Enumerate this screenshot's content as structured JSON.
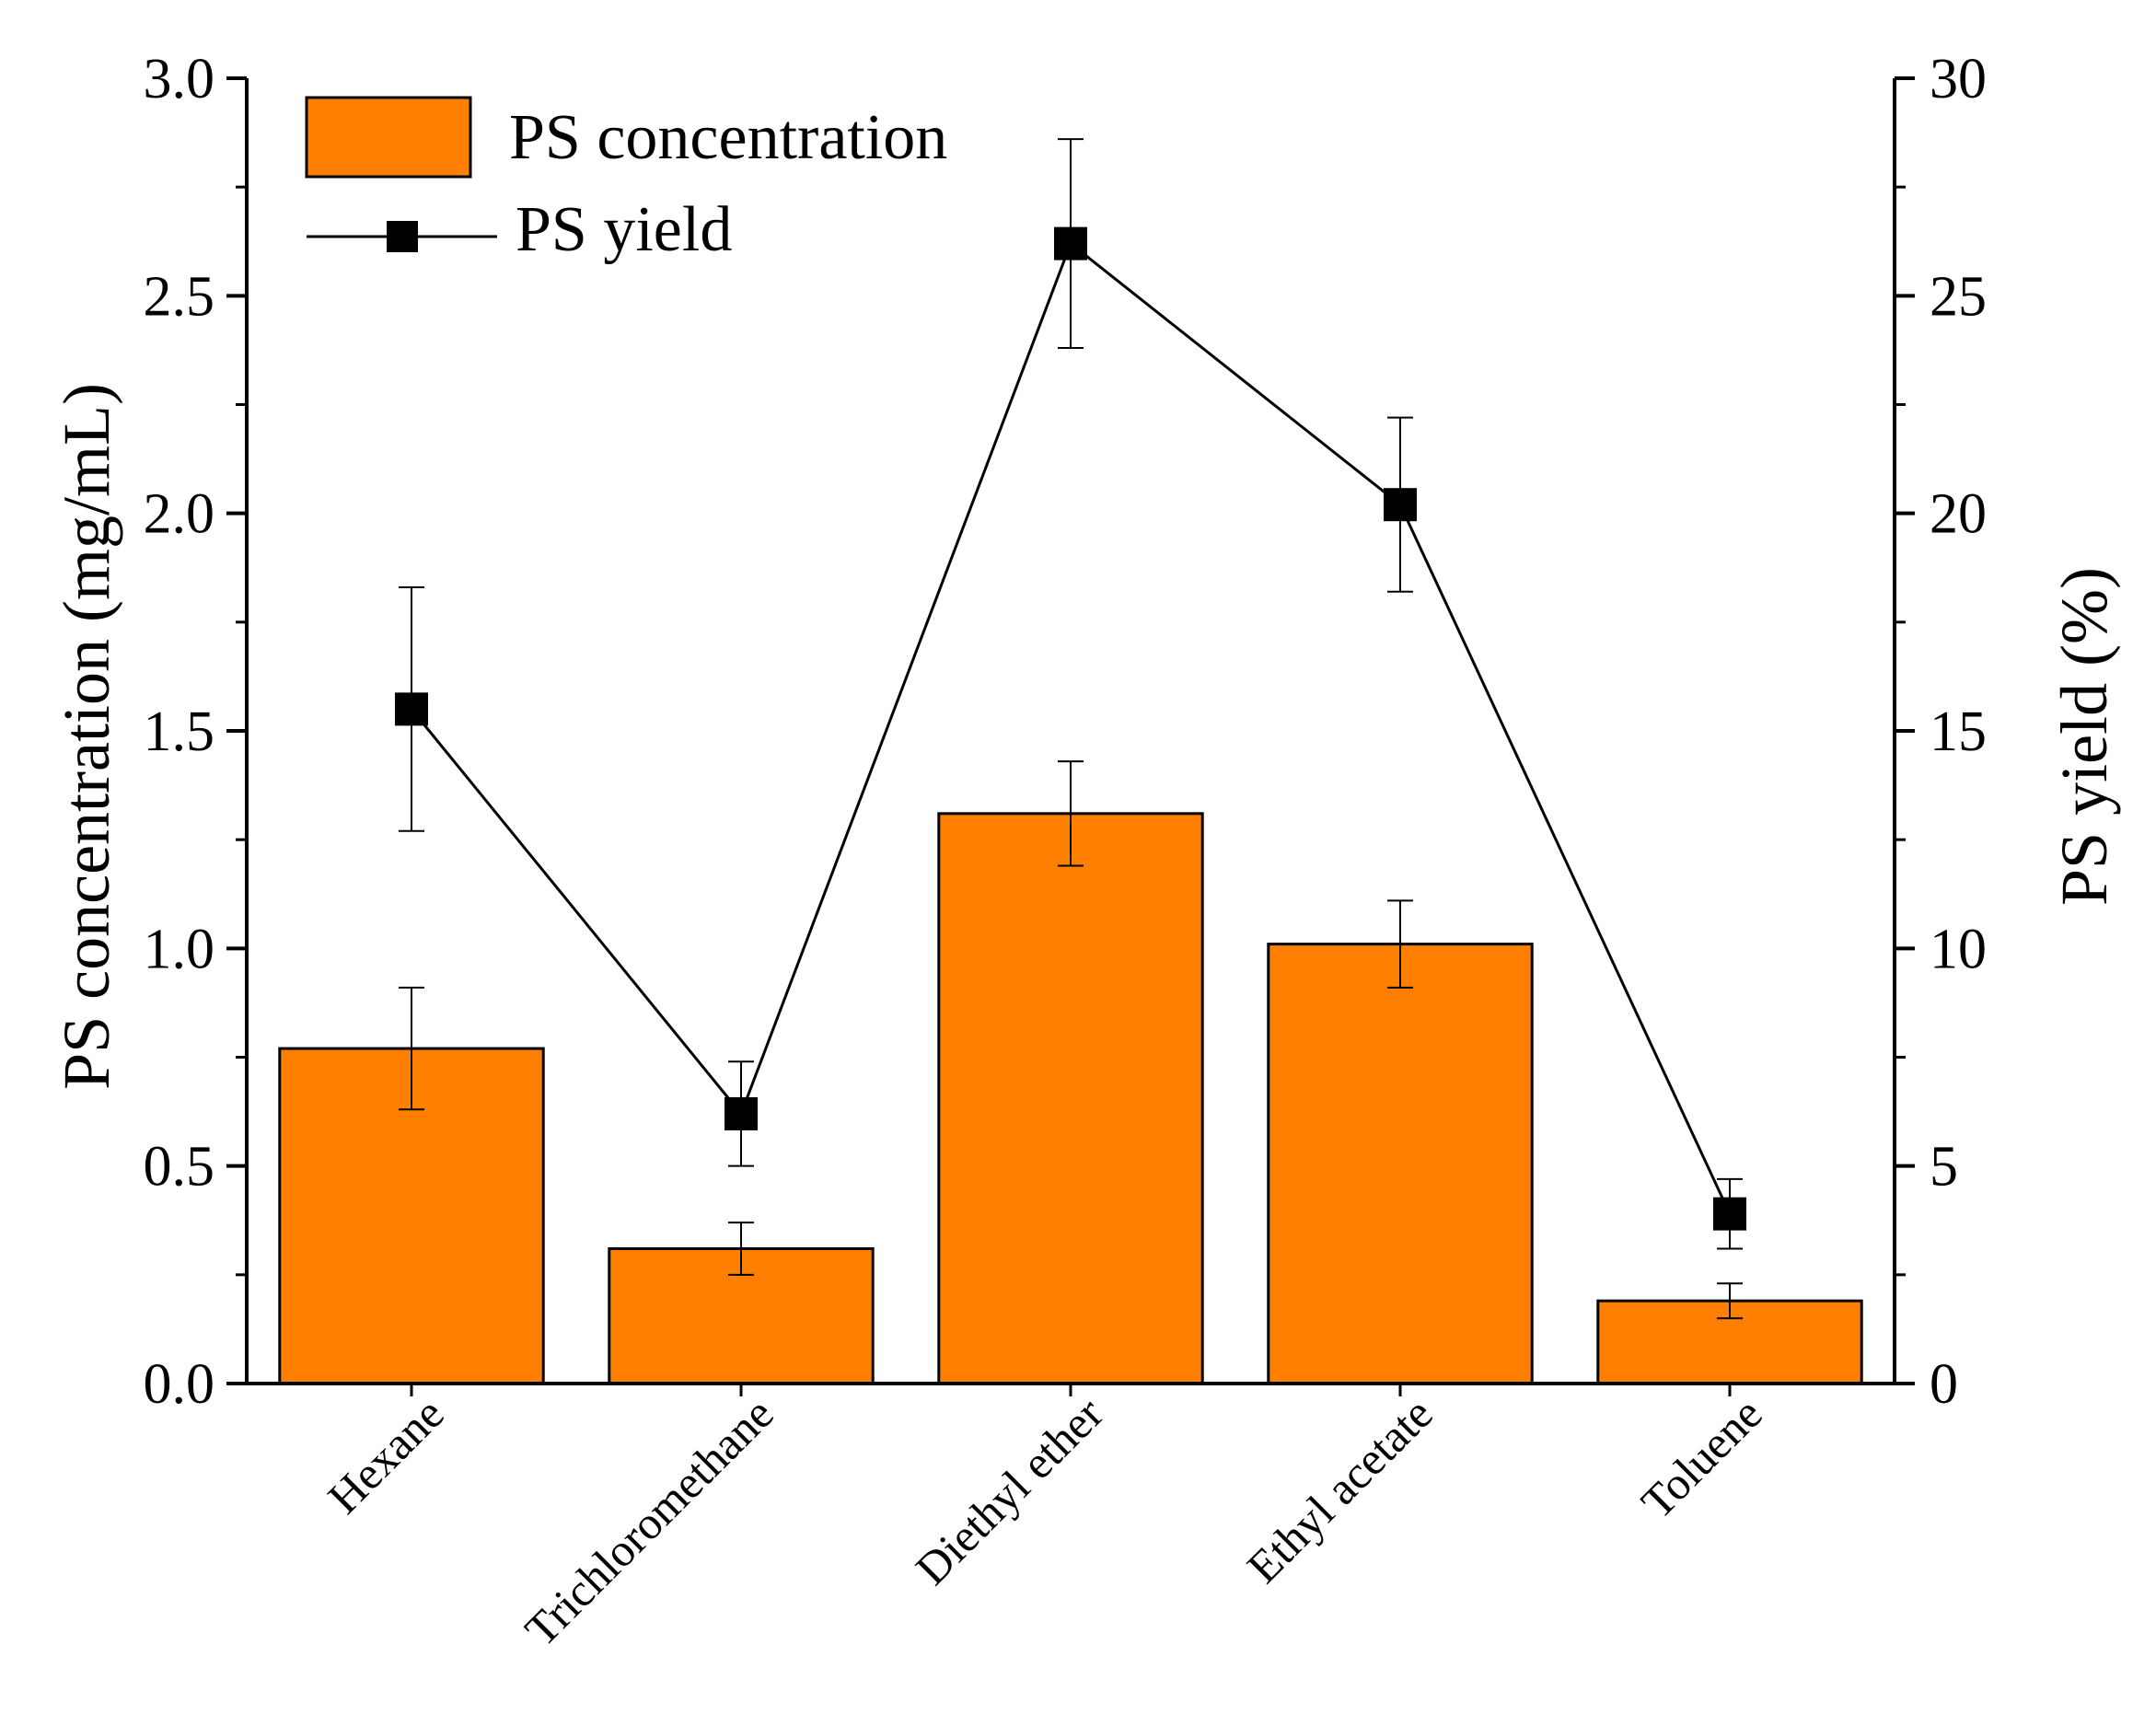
{
  "chart_data": {
    "type": "bar+line",
    "title": "",
    "categories": [
      "Hexane",
      "Trichloromethane",
      "Diethyl ether",
      "Ethyl acetate",
      "Toluene"
    ],
    "series": [
      {
        "name": "PS concentration",
        "type": "bar",
        "axis": "left",
        "values": [
          0.77,
          0.31,
          1.31,
          1.01,
          0.19
        ],
        "errors": [
          0.14,
          0.06,
          0.12,
          0.1,
          0.04
        ]
      },
      {
        "name": "PS yield",
        "type": "line",
        "axis": "right",
        "marker": "square",
        "values": [
          15.5,
          6.2,
          26.2,
          20.2,
          3.9
        ],
        "errors": [
          2.8,
          1.2,
          2.4,
          2.0,
          0.8
        ]
      }
    ],
    "ylabel": "PS concentration (mg/mL)",
    "y2label": "PS yield (%)",
    "ylim": [
      0.0,
      3.0
    ],
    "y2lim": [
      0,
      30
    ],
    "yticks": [
      "0.0",
      "0.5",
      "1.0",
      "1.5",
      "2.0",
      "2.5",
      "3.0"
    ],
    "y2ticks": [
      "0",
      "5",
      "10",
      "15",
      "20",
      "25",
      "30"
    ],
    "legend_position": "top-left",
    "grid": false,
    "colors": {
      "bar": "#ff8000",
      "line": "#000000",
      "axis": "#000000"
    }
  }
}
